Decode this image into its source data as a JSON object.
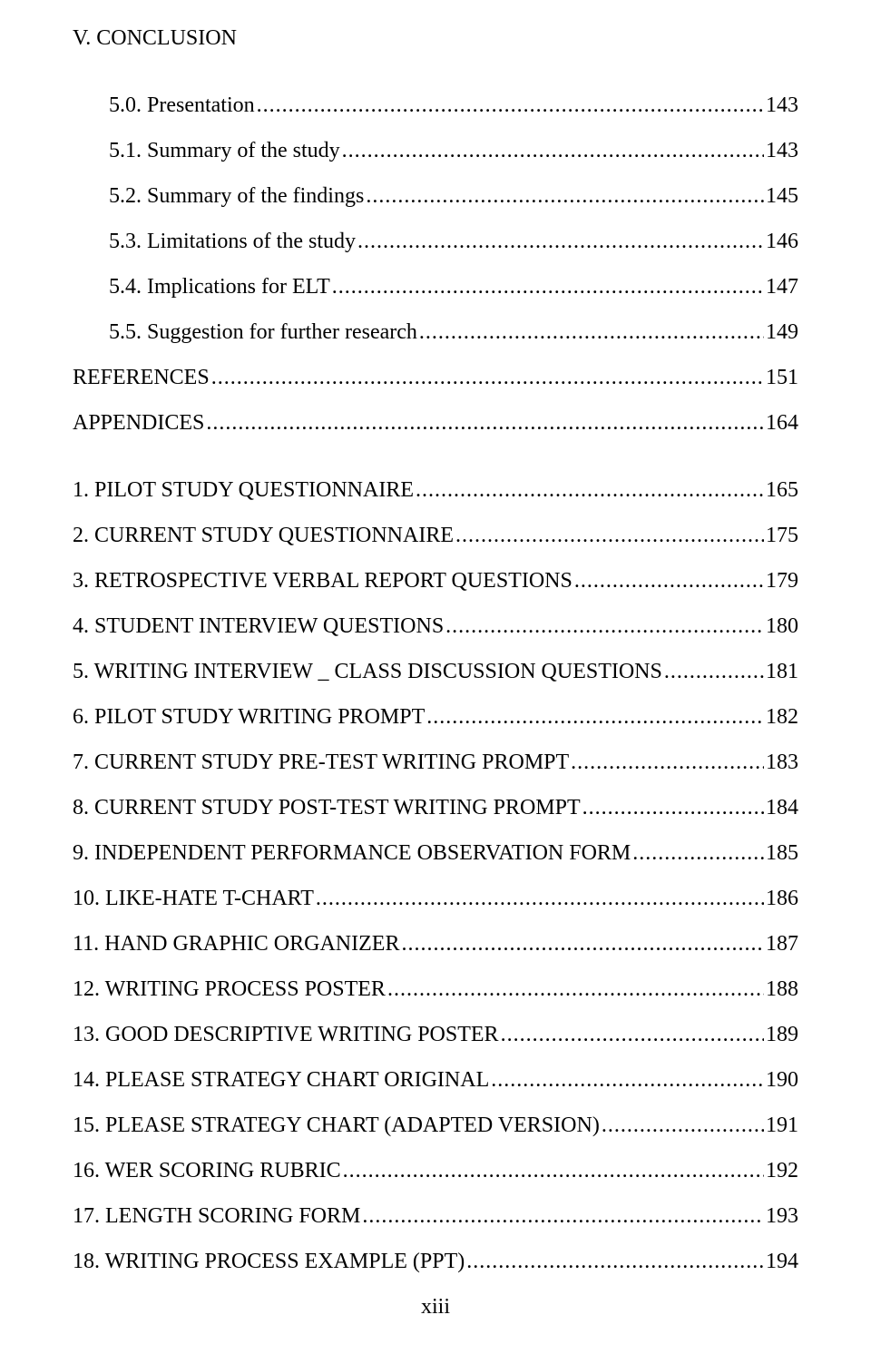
{
  "heading": "V. CONCLUSION",
  "entries": [
    {
      "label": "5.0.   Presentation",
      "page": "143",
      "indent": 1,
      "gap": false
    },
    {
      "label": "5.1.   Summary of the study",
      "page": "143",
      "indent": 1,
      "gap": false
    },
    {
      "label": "5.2.   Summary of the findings",
      "page": "145",
      "indent": 1,
      "gap": false
    },
    {
      "label": "5.3.   Limitations of the study",
      "page": "146",
      "indent": 1,
      "gap": false
    },
    {
      "label": "5.4.   Implications for ELT",
      "page": "147",
      "indent": 1,
      "gap": false
    },
    {
      "label": "5.5.   Suggestion for further research",
      "page": "149",
      "indent": 1,
      "gap": false
    },
    {
      "label": "REFERENCES",
      "page": "151",
      "indent": 0,
      "gap": false
    },
    {
      "label": "APPENDICES",
      "page": "164",
      "indent": 0,
      "gap": false
    },
    {
      "label": "1.  PILOT STUDY QUESTIONNAIRE",
      "page": "165",
      "indent": 0,
      "gap": true
    },
    {
      "label": "2.  CURRENT STUDY QUESTIONNAIRE",
      "page": "175",
      "indent": 0,
      "gap": false
    },
    {
      "label": "3.  RETROSPECTIVE VERBAL REPORT QUESTIONS",
      "page": "179",
      "indent": 0,
      "gap": false
    },
    {
      "label": "4.  STUDENT INTERVIEW QUESTIONS",
      "page": "180",
      "indent": 0,
      "gap": false
    },
    {
      "label": "5.  WRITING INTERVIEW _ CLASS DISCUSSION QUESTIONS",
      "page": "181",
      "indent": 0,
      "gap": false
    },
    {
      "label": "6.  PILOT STUDY WRITING PROMPT",
      "page": "182",
      "indent": 0,
      "gap": false
    },
    {
      "label": "7.  CURRENT STUDY PRE-TEST WRITING PROMPT",
      "page": "183",
      "indent": 0,
      "gap": false
    },
    {
      "label": "8.  CURRENT STUDY POST-TEST WRITING PROMPT",
      "page": "184",
      "indent": 0,
      "gap": false
    },
    {
      "label": "9.  INDEPENDENT PERFORMANCE  OBSERVATION FORM",
      "page": "185",
      "indent": 0,
      "gap": false
    },
    {
      "label": "10. LIKE-HATE T-CHART",
      "page": "186",
      "indent": 0,
      "gap": false
    },
    {
      "label": "11. HAND GRAPHIC ORGANIZER",
      "page": "187",
      "indent": 0,
      "gap": false
    },
    {
      "label": "12. WRITING PROCESS POSTER",
      "page": "188",
      "indent": 0,
      "gap": false
    },
    {
      "label": "13. GOOD DESCRIPTIVE WRITING POSTER",
      "page": "189",
      "indent": 0,
      "gap": false
    },
    {
      "label": "14. PLEASE STRATEGY CHART ORIGINAL",
      "page": "190",
      "indent": 0,
      "gap": false
    },
    {
      "label": "15. PLEASE STRATEGY CHART (ADAPTED VERSION)",
      "page": "191",
      "indent": 0,
      "gap": false
    },
    {
      "label": "16. WER SCORING RUBRIC",
      "page": "192",
      "indent": 0,
      "gap": false
    },
    {
      "label": "17. LENGTH SCORING FORM",
      "page": "193",
      "indent": 0,
      "gap": false
    },
    {
      "label": "18. WRITING PROCESS EXAMPLE (PPT)",
      "page": "194",
      "indent": 0,
      "gap": false
    }
  ],
  "footer": "xiii"
}
